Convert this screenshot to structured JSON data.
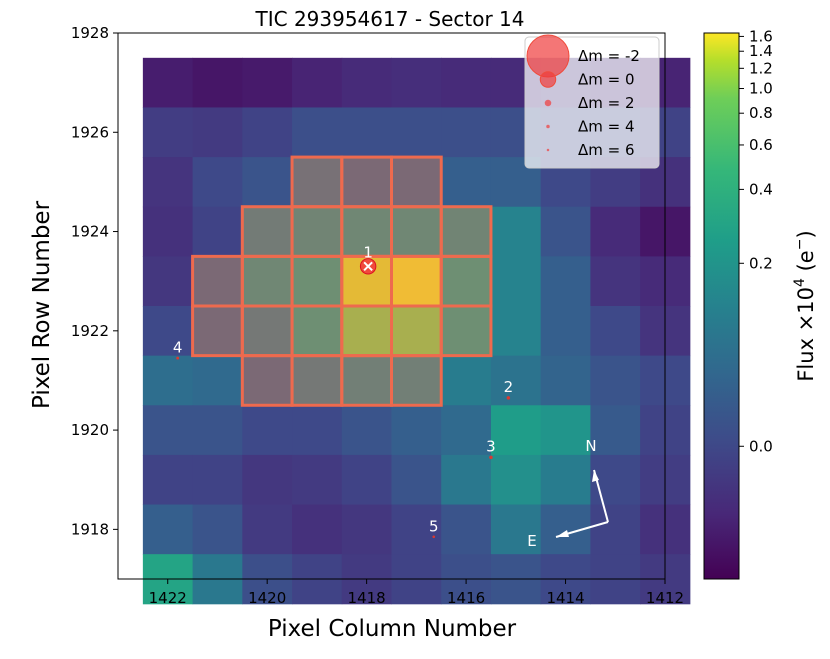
{
  "chart_data": {
    "type": "heatmap",
    "title": "TIC 293954617 - Sector 14",
    "xlabel": "Pixel Column Number",
    "ylabel": "Pixel Row Number",
    "xlim": [
      1423,
      1412
    ],
    "ylim": [
      1917,
      1928
    ],
    "x_ticks": [
      "1422",
      "1420",
      "1418",
      "1416",
      "1414",
      "1412"
    ],
    "y_ticks": [
      "1928",
      "1926",
      "1924",
      "1922",
      "1920",
      "1918"
    ],
    "colorbar": {
      "label_parts": [
        "Flux ×10",
        "4",
        " (e",
        "−",
        ")"
      ],
      "ticks": [
        {
          "label": "1.6",
          "value": 1.6
        },
        {
          "label": "1.4",
          "value": 1.4
        },
        {
          "label": "1.2",
          "value": 1.2
        },
        {
          "label": "1.0",
          "value": 1.0
        },
        {
          "label": "0.8",
          "value": 0.8
        },
        {
          "label": "0.6",
          "value": 0.6
        },
        {
          "label": "0.4",
          "value": 0.4
        },
        {
          "label": "0.2",
          "value": 0.2
        },
        {
          "label": "0.0",
          "value": 0.0
        }
      ]
    },
    "flux_grid_note_rows_top_to_bottom": "rows 1927 down to 1917, columns 1422 to 1412",
    "flux_levels": [
      [
        0.08,
        0.06,
        0.07,
        0.1,
        0.12,
        0.13,
        0.12,
        0.12,
        0.15,
        0.12,
        0.1
      ],
      [
        0.18,
        0.17,
        0.2,
        0.24,
        0.24,
        0.24,
        0.24,
        0.24,
        0.22,
        0.22,
        0.2
      ],
      [
        0.15,
        0.22,
        0.26,
        0.35,
        0.3,
        0.3,
        0.3,
        0.3,
        0.22,
        0.18,
        0.14
      ],
      [
        0.14,
        0.2,
        0.42,
        0.48,
        0.5,
        0.5,
        0.48,
        0.45,
        0.26,
        0.12,
        0.06
      ],
      [
        0.16,
        0.3,
        0.5,
        0.55,
        0.95,
        0.98,
        0.55,
        0.45,
        0.3,
        0.15,
        0.12
      ],
      [
        0.22,
        0.3,
        0.4,
        0.55,
        0.8,
        0.8,
        0.55,
        0.45,
        0.3,
        0.22,
        0.15
      ],
      [
        0.36,
        0.34,
        0.3,
        0.4,
        0.45,
        0.45,
        0.42,
        0.38,
        0.32,
        0.26,
        0.22
      ],
      [
        0.26,
        0.26,
        0.22,
        0.22,
        0.26,
        0.3,
        0.34,
        0.55,
        0.52,
        0.28,
        0.2
      ],
      [
        0.2,
        0.2,
        0.16,
        0.17,
        0.2,
        0.26,
        0.4,
        0.5,
        0.42,
        0.22,
        0.18
      ],
      [
        0.3,
        0.26,
        0.17,
        0.14,
        0.16,
        0.2,
        0.26,
        0.4,
        0.3,
        0.2,
        0.14
      ],
      [
        0.58,
        0.4,
        0.24,
        0.2,
        0.17,
        0.2,
        0.24,
        0.26,
        0.22,
        0.2,
        0.17
      ]
    ],
    "aperture_pixels": [
      [
        1419,
        1925
      ],
      [
        1418,
        1925
      ],
      [
        1417,
        1925
      ],
      [
        1420,
        1924
      ],
      [
        1419,
        1924
      ],
      [
        1418,
        1924
      ],
      [
        1417,
        1924
      ],
      [
        1416,
        1924
      ],
      [
        1421,
        1923
      ],
      [
        1420,
        1923
      ],
      [
        1419,
        1923
      ],
      [
        1418,
        1923
      ],
      [
        1417,
        1923
      ],
      [
        1416,
        1923
      ],
      [
        1421,
        1922
      ],
      [
        1420,
        1922
      ],
      [
        1419,
        1922
      ],
      [
        1418,
        1922
      ],
      [
        1417,
        1922
      ],
      [
        1416,
        1922
      ],
      [
        1420,
        1921
      ],
      [
        1419,
        1921
      ],
      [
        1418,
        1921
      ],
      [
        1417,
        1921
      ]
    ],
    "stars": [
      {
        "label": "1",
        "x": 1417.97,
        "y": 1923.3,
        "size_dm": 0,
        "target": true
      },
      {
        "label": "2",
        "x": 1415.15,
        "y": 1920.65,
        "size_dm": 4
      },
      {
        "label": "3",
        "x": 1415.5,
        "y": 1919.45,
        "size_dm": 4
      },
      {
        "label": "4",
        "x": 1421.8,
        "y": 1921.45,
        "size_dm": 5
      },
      {
        "label": "5",
        "x": 1416.65,
        "y": 1917.85,
        "size_dm": 5.5
      }
    ],
    "legend": {
      "placement": "top-right",
      "entries": [
        {
          "label": "Δm =  -2",
          "dm": -2
        },
        {
          "label": "Δm =  0",
          "dm": 0
        },
        {
          "label": "Δm =  2",
          "dm": 2
        },
        {
          "label": "Δm =  4",
          "dm": 4
        },
        {
          "label": "Δm =  6",
          "dm": 6
        }
      ]
    },
    "compass": {
      "north": "N",
      "east": "E"
    }
  }
}
